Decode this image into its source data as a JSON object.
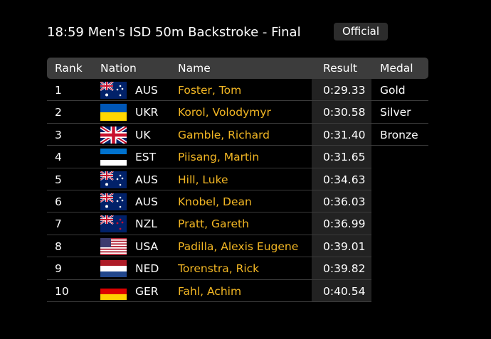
{
  "header": {
    "title": "18:59 Men's ISD 50m Backstroke - Final",
    "badge": "Official"
  },
  "table": {
    "columns": [
      "Rank",
      "Nation",
      "Name",
      "Result",
      "Medal"
    ],
    "rows": [
      {
        "rank": 1,
        "nation": "AUS",
        "name": "Foster, Tom",
        "result": "0:29.33",
        "medal": "Gold"
      },
      {
        "rank": 2,
        "nation": "UKR",
        "name": "Korol, Volodymyr",
        "result": "0:30.58",
        "medal": "Silver"
      },
      {
        "rank": 3,
        "nation": "UK",
        "name": "Gamble, Richard",
        "result": "0:31.40",
        "medal": "Bronze"
      },
      {
        "rank": 4,
        "nation": "EST",
        "name": "Piisang, Martin",
        "result": "0:31.65"
      },
      {
        "rank": 5,
        "nation": "AUS",
        "name": "Hill, Luke",
        "result": "0:34.63"
      },
      {
        "rank": 6,
        "nation": "AUS",
        "name": "Knobel, Dean",
        "result": "0:36.03"
      },
      {
        "rank": 7,
        "nation": "NZL",
        "name": "Pratt, Gareth",
        "result": "0:36.99"
      },
      {
        "rank": 8,
        "nation": "USA",
        "name": "Padilla, Alexis Eugene",
        "result": "0:39.01"
      },
      {
        "rank": 9,
        "nation": "NED",
        "name": "Torenstra, Rick",
        "result": "0:39.82"
      },
      {
        "rank": 10,
        "nation": "GER",
        "name": "Fahl, Achim",
        "result": "0:40.54"
      }
    ]
  }
}
